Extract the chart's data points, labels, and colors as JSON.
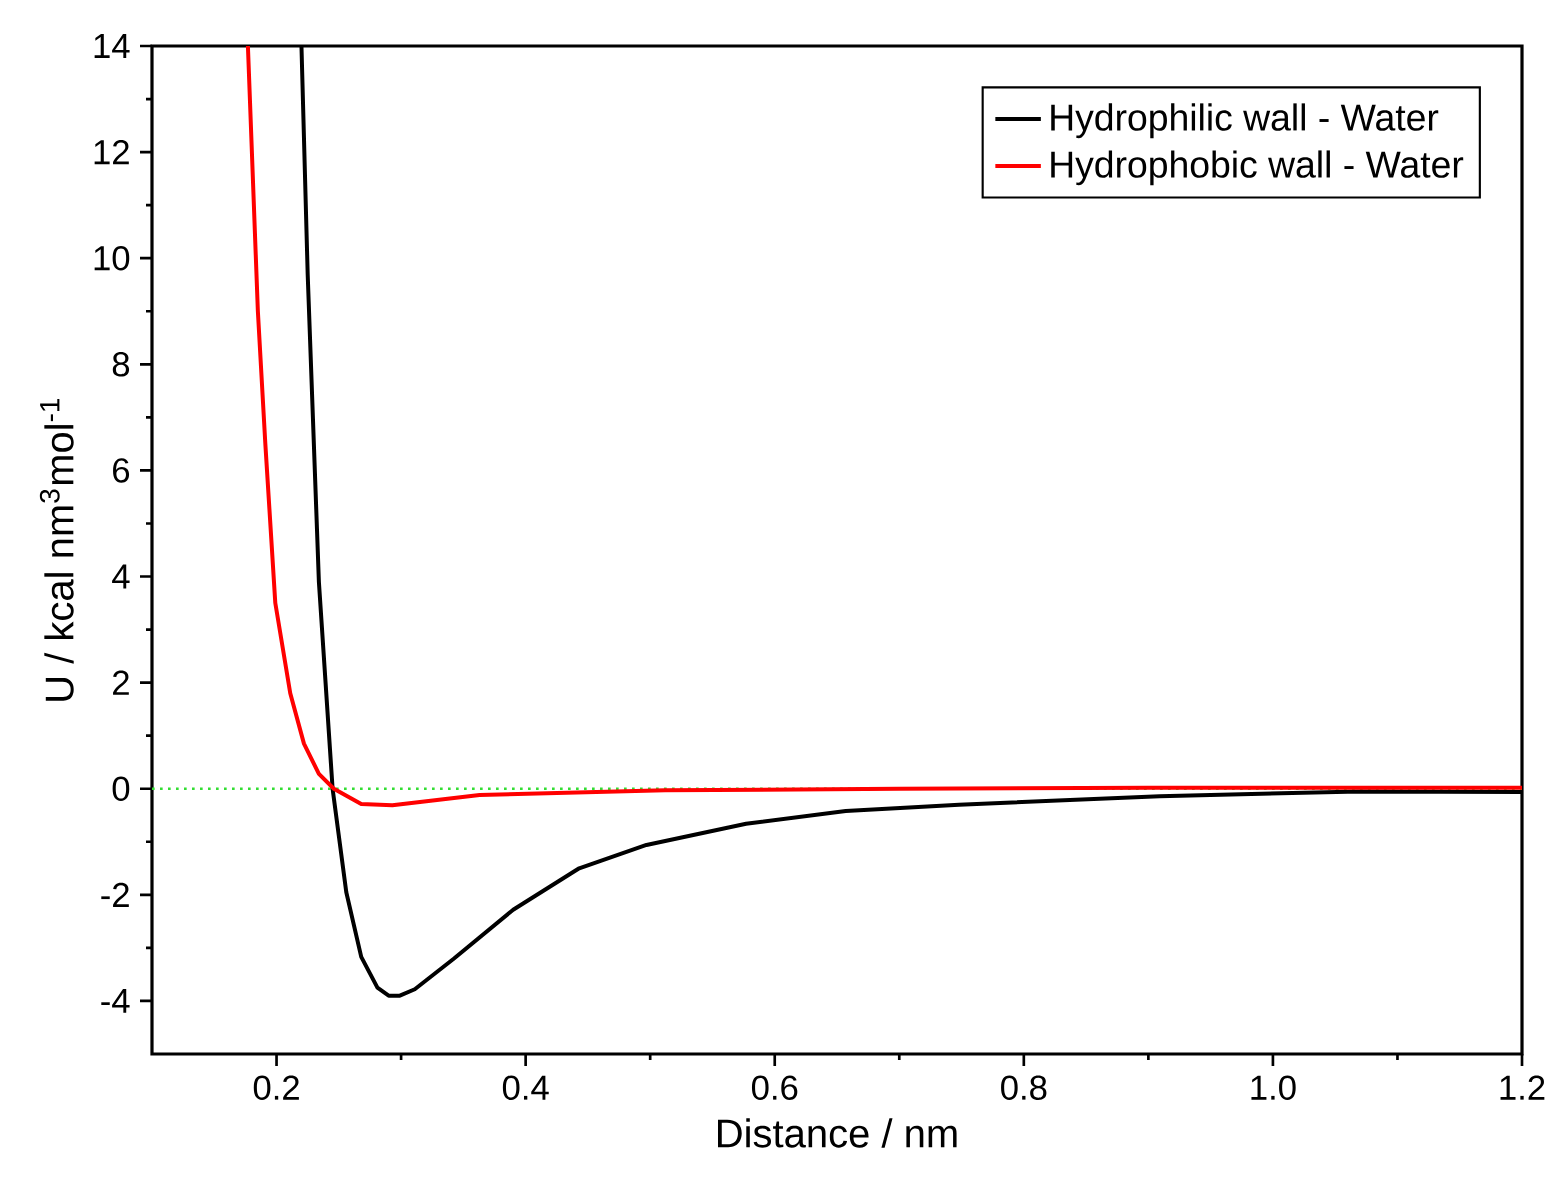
{
  "chart_data": {
    "type": "line",
    "xlabel": "Distance / nm",
    "ylabel": "U / kcal nm$^{3}$mol$^{-1}$",
    "xlim": [
      0.1,
      1.2
    ],
    "ylim": [
      -5,
      14
    ],
    "xticks": [
      0.2,
      0.4,
      0.6,
      0.8,
      {
        "value": 1.0,
        "label": "1.0"
      },
      1.2
    ],
    "yticks": [
      -4,
      -2,
      0,
      2,
      4,
      6,
      8,
      10,
      12,
      14
    ],
    "legend": "top right",
    "marker": "none",
    "line_style": "solid",
    "grid": false,
    "ref_lines": [
      {
        "axis": "y",
        "value": 0,
        "color": "#33dd33",
        "line_style": "dotted"
      }
    ],
    "series": [
      {
        "name": "Hydrophilic wall - Water",
        "color": "#000000",
        "x": [
          0.22,
          0.225,
          0.234,
          0.245,
          0.256,
          0.268,
          0.281,
          0.29,
          0.299,
          0.311,
          0.342,
          0.39,
          0.443,
          0.497,
          0.577,
          0.657,
          0.748,
          0.909,
          1.069,
          1.2
        ],
        "values": [
          14,
          9.7,
          3.9,
          0,
          -1.95,
          -3.17,
          -3.75,
          -3.9,
          -3.9,
          -3.78,
          -3.21,
          -2.28,
          -1.5,
          -1.06,
          -0.66,
          -0.42,
          -0.3,
          -0.14,
          -0.05,
          -0.06
        ]
      },
      {
        "name": "Hydrophobic wall - Water",
        "color": "#ff0000",
        "x": [
          0.177,
          0.185,
          0.191,
          0.199,
          0.211,
          0.222,
          0.234,
          0.246,
          0.268,
          0.293,
          0.363,
          0.512,
          0.7,
          0.9,
          1.2
        ],
        "values": [
          14,
          9.0,
          6.5,
          3.5,
          1.8,
          0.85,
          0.28,
          0,
          -0.29,
          -0.31,
          -0.12,
          -0.03,
          0,
          0.02,
          0.02
        ]
      }
    ]
  }
}
